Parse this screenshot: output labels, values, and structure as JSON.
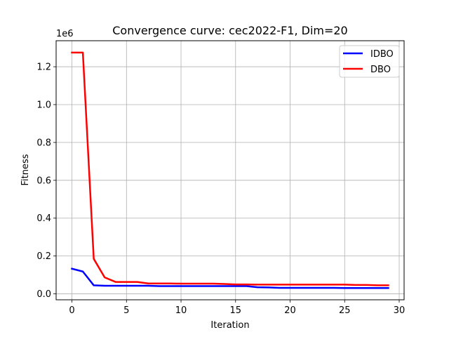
{
  "chart_data": {
    "type": "line",
    "title": "Convergence curve:  cec2022-F1, Dim=20",
    "xlabel": "Iteration",
    "ylabel": "Fitness",
    "y_offset_text": "1e6",
    "y_scale_multiplier": 1000000,
    "xlim": [
      -1.45,
      30.45
    ],
    "ylim": [
      -0.0313,
      1.3375
    ],
    "x_ticks": [
      0,
      5,
      10,
      15,
      20,
      25,
      30
    ],
    "x_tick_labels": [
      "0",
      "5",
      "10",
      "15",
      "20",
      "25",
      "30"
    ],
    "y_ticks": [
      0.0,
      0.2,
      0.4,
      0.6,
      0.8,
      1.0,
      1.2
    ],
    "y_tick_labels": [
      "0.0",
      "0.2",
      "0.4",
      "0.6",
      "0.8",
      "1.0",
      "1.2"
    ],
    "grid": true,
    "legend_position": "top-right",
    "x": [
      0,
      1,
      2,
      3,
      4,
      5,
      6,
      7,
      8,
      9,
      10,
      11,
      12,
      13,
      14,
      15,
      16,
      17,
      18,
      19,
      20,
      21,
      22,
      23,
      24,
      25,
      26,
      27,
      28,
      29
    ],
    "series": [
      {
        "name": "IDBO",
        "color": "#0000ff",
        "values": [
          0.133,
          0.118,
          0.045,
          0.043,
          0.043,
          0.043,
          0.043,
          0.043,
          0.041,
          0.041,
          0.041,
          0.041,
          0.041,
          0.041,
          0.041,
          0.041,
          0.041,
          0.035,
          0.034,
          0.032,
          0.032,
          0.032,
          0.032,
          0.032,
          0.032,
          0.031,
          0.031,
          0.031,
          0.031,
          0.031
        ]
      },
      {
        "name": "DBO",
        "color": "#ff0000",
        "values": [
          1.275,
          1.275,
          0.185,
          0.087,
          0.063,
          0.063,
          0.063,
          0.055,
          0.055,
          0.055,
          0.054,
          0.054,
          0.054,
          0.054,
          0.052,
          0.05,
          0.05,
          0.049,
          0.049,
          0.049,
          0.049,
          0.049,
          0.049,
          0.049,
          0.049,
          0.049,
          0.047,
          0.047,
          0.045,
          0.045
        ]
      }
    ]
  }
}
